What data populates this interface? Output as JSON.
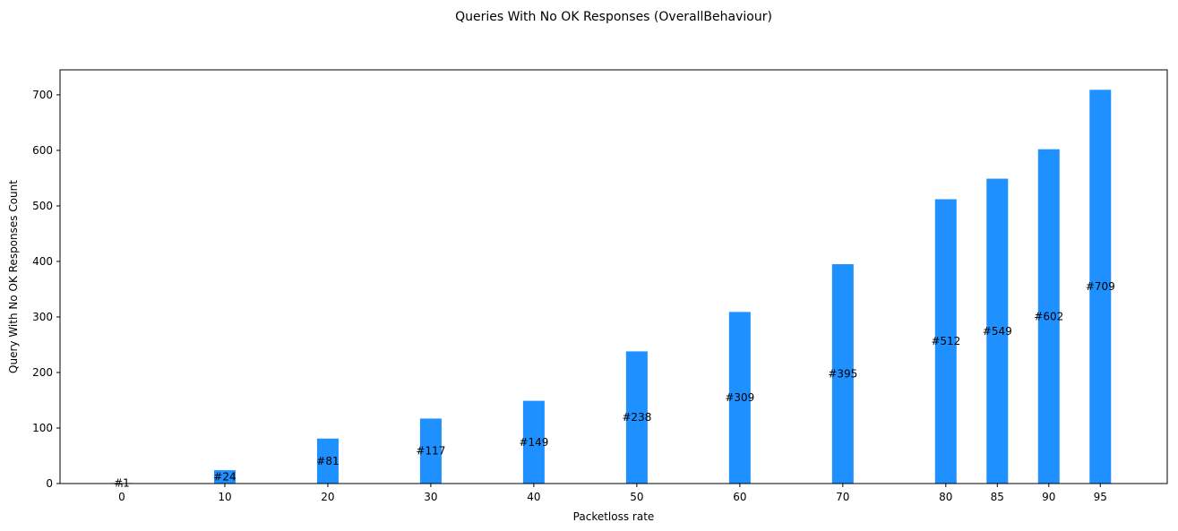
{
  "chart_data": {
    "type": "bar",
    "title": "Queries With No OK Responses (OverallBehaviour)",
    "xlabel": "Packetloss rate",
    "ylabel": "Query With No OK Responses Count",
    "categories": [
      "0",
      "10",
      "20",
      "30",
      "40",
      "50",
      "60",
      "70",
      "80",
      "85",
      "90",
      "95"
    ],
    "x": [
      0,
      10,
      20,
      30,
      40,
      50,
      60,
      70,
      80,
      85,
      90,
      95
    ],
    "values": [
      1,
      24,
      81,
      117,
      149,
      238,
      309,
      395,
      512,
      549,
      602,
      709
    ],
    "data_labels": [
      "#1",
      "#24",
      "#81",
      "#117",
      "#149",
      "#238",
      "#309",
      "#395",
      "#512",
      "#549",
      "#602",
      "#709"
    ],
    "xlim": [
      -6,
      101.5
    ],
    "ylim": [
      0,
      745
    ],
    "yticks": [
      0,
      100,
      200,
      300,
      400,
      500,
      600,
      700
    ],
    "bar_color": "#1e90ff",
    "grid": false
  }
}
